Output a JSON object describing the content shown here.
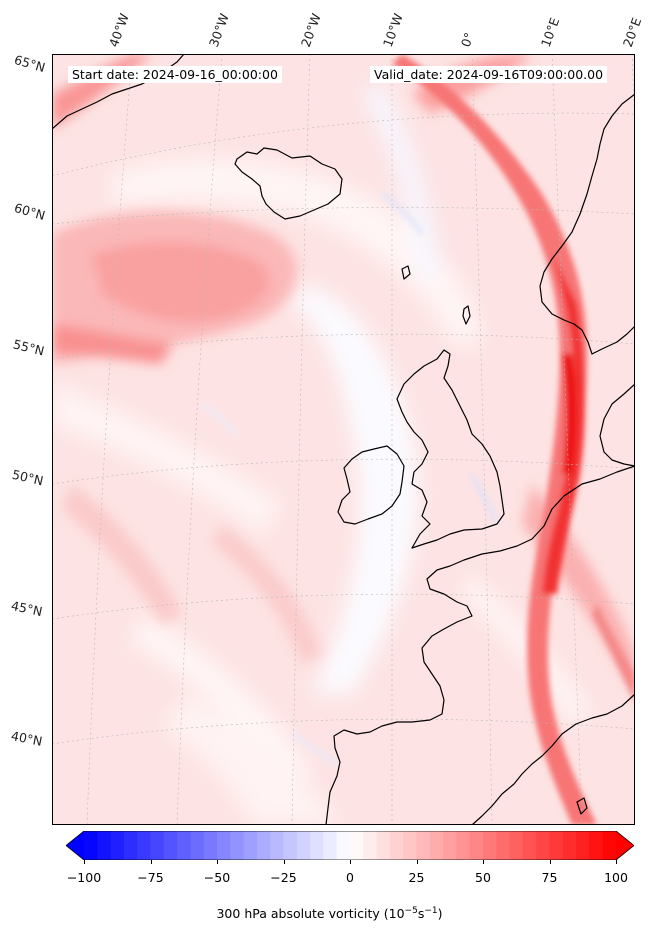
{
  "map": {
    "start_label": "Start date: 2024-09-16_00:00:00",
    "valid_label": "Valid_date: 2024-09-16T09:00:00.00",
    "lon_labels": [
      "40°W",
      "30°W",
      "20°W",
      "10°W",
      "0°",
      "10°E",
      "20°E"
    ],
    "lat_labels": [
      "65°N",
      "60°N",
      "55°N",
      "50°N",
      "45°N",
      "40°N"
    ]
  },
  "colorbar": {
    "ticks": [
      "−100",
      "−75",
      "−50",
      "−25",
      "0",
      "25",
      "50",
      "75",
      "100"
    ],
    "label": "300 hPa absolute vorticity (10",
    "label_exp1": "−5",
    "label_mid": "s",
    "label_exp2": "−1",
    "label_end": ")",
    "min": -100,
    "max": 100,
    "levels": 40,
    "colormap": "bwr",
    "extend": "both"
  },
  "colors": {
    "low": "#0000ff",
    "mid": "#ffffff",
    "high": "#ff0000",
    "coast": "#000000"
  }
}
